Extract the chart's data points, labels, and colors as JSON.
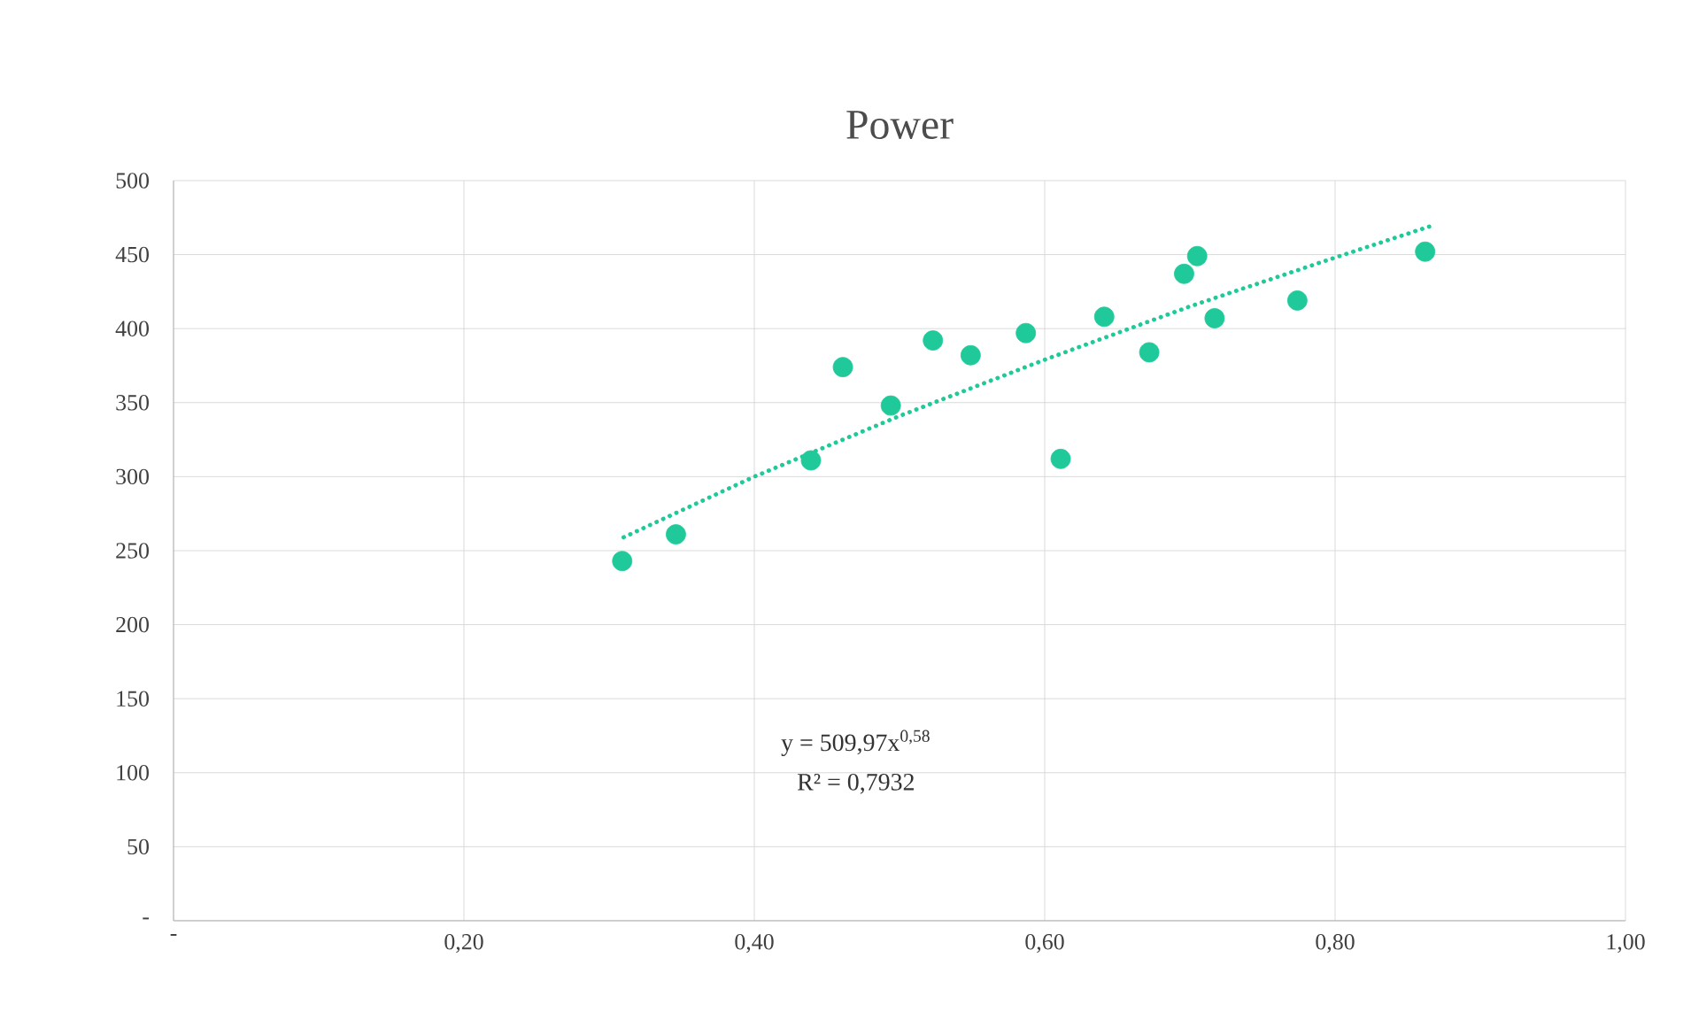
{
  "chart_data": {
    "type": "scatter",
    "title": "Power",
    "xlim": [
      0,
      1
    ],
    "ylim": [
      0,
      500
    ],
    "xticks": [
      {
        "value": 0,
        "label": "-"
      },
      {
        "value": 0.2,
        "label": "0,20"
      },
      {
        "value": 0.4,
        "label": "0,40"
      },
      {
        "value": 0.6,
        "label": "0,60"
      },
      {
        "value": 0.8,
        "label": "0,80"
      },
      {
        "value": 1,
        "label": "1,00"
      }
    ],
    "yticks": [
      {
        "value": 0,
        "label": "-"
      },
      50,
      100,
      150,
      200,
      250,
      300,
      350,
      400,
      450,
      500
    ],
    "grid": true,
    "series": [
      {
        "color": "#1fc99a",
        "marker": "circle",
        "x": [
          0.309,
          0.346,
          0.439,
          0.461,
          0.494,
          0.523,
          0.549,
          0.587,
          0.611,
          0.641,
          0.672,
          0.696,
          0.705,
          0.717,
          0.774,
          0.862
        ],
        "values": [
          243,
          261,
          311,
          374,
          348,
          392,
          382,
          397,
          312,
          408,
          384,
          437,
          449,
          407,
          419,
          452
        ]
      },
      {
        "type": "line",
        "color": "#1fc99a",
        "marker": "none",
        "line_style": "dotted",
        "x": [
          0.31,
          0.4,
          0.5,
          0.6,
          0.7,
          0.8,
          0.865
        ],
        "values": [
          259,
          300,
          341,
          379,
          415,
          448,
          469
        ]
      }
    ],
    "annotations": [
      "y = 509,97x$^{0,58}$",
      "R² = 0,7932"
    ]
  }
}
